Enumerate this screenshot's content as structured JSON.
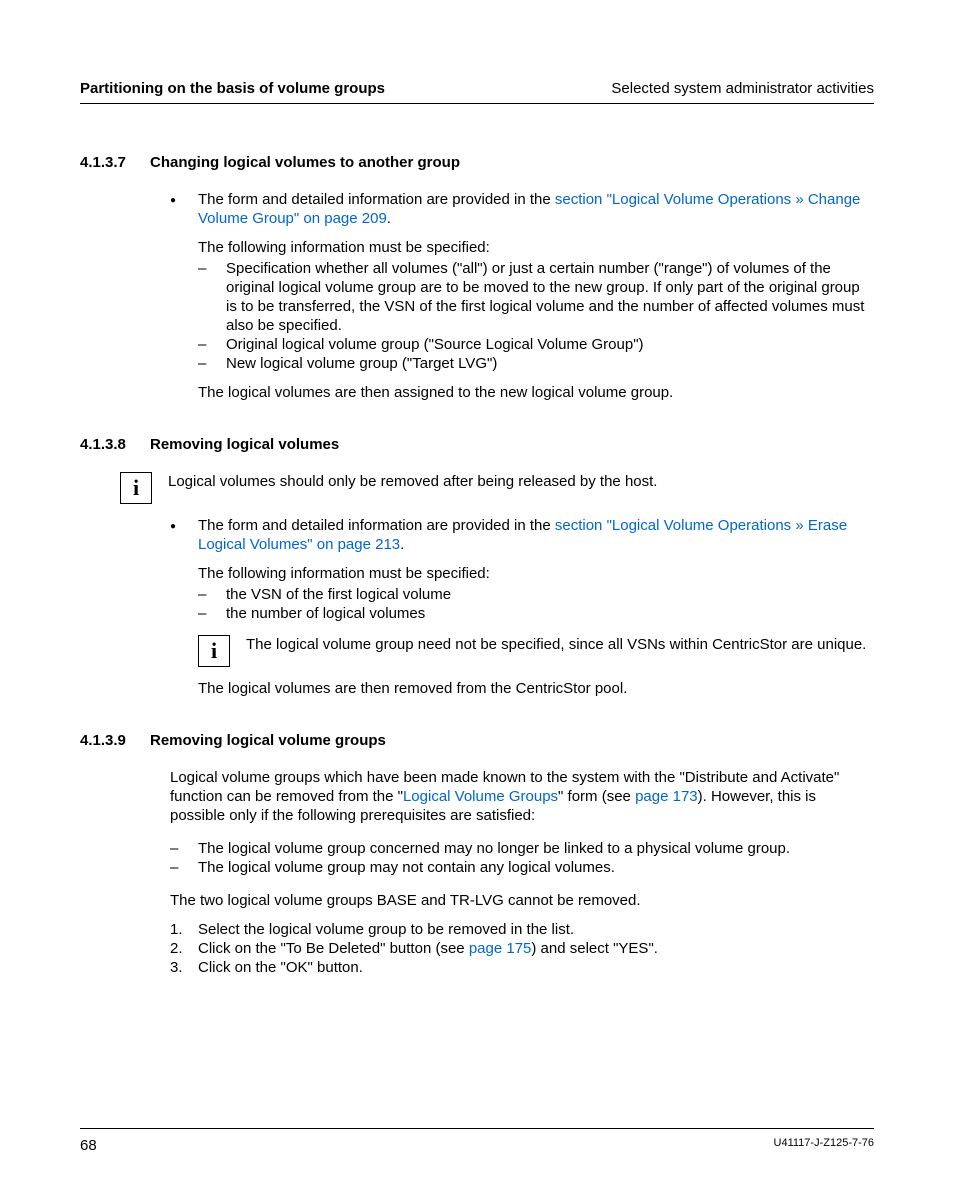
{
  "header": {
    "left": "Partitioning on the basis of volume groups",
    "right": "Selected system administrator activities"
  },
  "sections": [
    {
      "num": "4.1.3.7",
      "title": "Changing logical volumes to another group",
      "blocks": [
        {
          "type": "bullet",
          "pre": "The form and detailed information are provided in the ",
          "link": "section \"Logical Volume Operations » Change Volume Group\" on page 209",
          "post": "."
        },
        {
          "type": "subpara",
          "text": "The following information must be specified:"
        },
        {
          "type": "dashlist",
          "items": [
            "Specification whether all volumes (\"all\") or just a certain number (\"range\") of volumes of the original logical volume group are to be moved to the new group. If only part of the original group is to be transferred, the VSN of the first logical volume and the number of affected volumes must also be specified.",
            "Original logical volume group  (\"Source Logical Volume Group\")",
            "New logical volume group  (\"Target LVG\")"
          ]
        },
        {
          "type": "subpara",
          "text": "The logical volumes are then assigned to the new logical volume group."
        }
      ]
    },
    {
      "num": "4.1.3.8",
      "title": "Removing logical volumes",
      "blocks": [
        {
          "type": "info",
          "nested": false,
          "text": "Logical volumes should only be removed after being released by the host."
        },
        {
          "type": "bullet",
          "pre": "The form and detailed information are provided in the ",
          "link": "section \"Logical Volume Operations » Erase Logical Volumes\" on page 213",
          "post": "."
        },
        {
          "type": "subpara",
          "text": "The following information must be specified:"
        },
        {
          "type": "dashlist",
          "items": [
            "the VSN of the first logical volume",
            "the number of logical volumes"
          ]
        },
        {
          "type": "info",
          "nested": true,
          "text": "The logical volume group need not be specified, since all VSNs within CentricStor are unique."
        },
        {
          "type": "subpara",
          "text": "The logical volumes are then removed from the CentricStor pool."
        }
      ]
    },
    {
      "num": "4.1.3.9",
      "title": "Removing logical volume groups",
      "blocks": [
        {
          "type": "richpara",
          "parts": [
            {
              "t": "Logical volume groups which have been made known to the system with the \"Distribute and Activate\" function can be removed from the \""
            },
            {
              "t": "Logical Volume Groups",
              "link": true
            },
            {
              "t": "\" form (see "
            },
            {
              "t": "page 173",
              "link": true
            },
            {
              "t": "). However, this is possible only if the following prerequisites are satisfied:"
            }
          ]
        },
        {
          "type": "dashlist_top",
          "items": [
            "The logical volume group concerned may no longer be linked to a physical volume group.",
            "The logical volume group may not contain any logical volumes."
          ]
        },
        {
          "type": "bodypara",
          "text": "The two logical volume groups BASE and TR-LVG cannot be removed."
        },
        {
          "type": "numlist",
          "items": [
            {
              "parts": [
                {
                  "t": "Select the logical volume group to be removed in the list."
                }
              ]
            },
            {
              "parts": [
                {
                  "t": "Click on the \"To Be Deleted\" button (see "
                },
                {
                  "t": "page 175",
                  "link": true
                },
                {
                  "t": ") and select \"YES\"."
                }
              ]
            },
            {
              "parts": [
                {
                  "t": "Click on the \"OK\" button."
                }
              ]
            }
          ]
        }
      ]
    }
  ],
  "footer": {
    "page": "68",
    "docid": "U41117-J-Z125-7-76"
  },
  "colors": {
    "link": "#0066cc",
    "text": "#000000",
    "bg": "#ffffff"
  }
}
